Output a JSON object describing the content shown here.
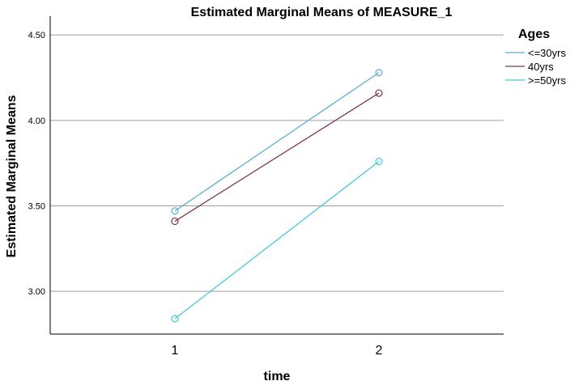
{
  "chart_data": {
    "type": "line",
    "title": "Estimated Marginal Means of MEASURE_1",
    "xlabel": "time",
    "ylabel": "Estimated Marginal Means",
    "categories": [
      "1",
      "2"
    ],
    "ylim": [
      2.75,
      4.61
    ],
    "yticks": [
      3.0,
      3.5,
      4.0,
      4.5
    ],
    "ytick_labels": [
      "3.00",
      "3.50",
      "4.00",
      "4.50"
    ],
    "grid": "horizontal",
    "legend_title": "Ages",
    "legend_position": "right",
    "marker": "open-circle",
    "series": [
      {
        "name": "<=30yrs",
        "color": "#5aaed0",
        "values": [
          3.47,
          4.28
        ]
      },
      {
        "name": "40yrs",
        "color": "#7d3358",
        "values": [
          3.41,
          4.16
        ]
      },
      {
        "name": ">=50yrs",
        "color": "#44c8d8",
        "values": [
          2.84,
          3.76
        ]
      }
    ]
  }
}
